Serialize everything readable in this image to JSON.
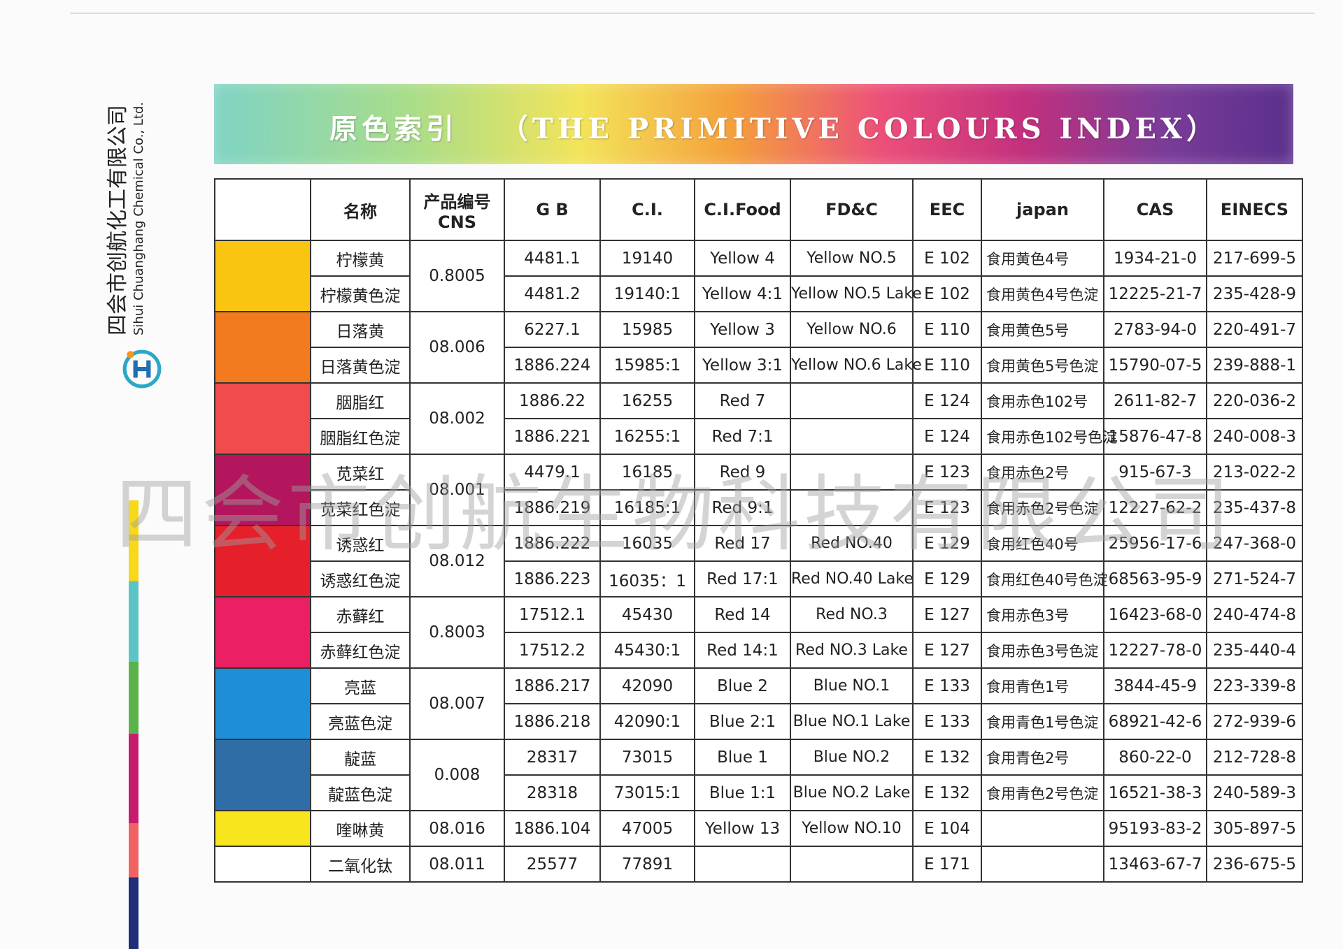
{
  "company": {
    "name_cn": "四会市创航化工有限公司",
    "name_en": "Sihui Chuanghang Chemical Co., Ltd."
  },
  "title": {
    "cn": "原色索引",
    "en": "（THE PRIMITIVE COLOURS INDEX）"
  },
  "watermark": "四会市创航生物科技有限公司",
  "table": {
    "headers": [
      "名称",
      [
        "产品编号",
        "CNS"
      ],
      "G B",
      "C.I.",
      "C.I.Food",
      "FD&C",
      "EEC",
      "japan",
      "CAS",
      "EINECS"
    ],
    "groups": [
      {
        "color": "#f9c510",
        "cns": "0.8005",
        "rows": [
          {
            "name": "柠檬黄",
            "gb": "4481.1",
            "ci": "19140",
            "ci_food": "Yellow 4",
            "fdc": "Yellow NO.5",
            "eec": "E 102",
            "japan": "食用黄色4号",
            "cas": "1934-21-0",
            "einecs": "217-699-5"
          },
          {
            "name": "柠檬黄色淀",
            "gb": "4481.2",
            "ci": "19140:1",
            "ci_food": "Yellow 4:1",
            "fdc": "Yellow NO.5 Lake",
            "eec": "E 102",
            "japan": "食用黄色4号色淀",
            "cas": "12225-21-7",
            "einecs": "235-428-9"
          }
        ]
      },
      {
        "color": "#f47a1f",
        "cns": "08.006",
        "rows": [
          {
            "name": "日落黄",
            "gb": "6227.1",
            "ci": "15985",
            "ci_food": "Yellow 3",
            "fdc": "Yellow NO.6",
            "eec": "E 110",
            "japan": "食用黄色5号",
            "cas": "2783-94-0",
            "einecs": "220-491-7"
          },
          {
            "name": "日落黄色淀",
            "gb": "1886.224",
            "ci": "15985:1",
            "ci_food": "Yellow 3:1",
            "fdc": "Yellow NO.6 Lake",
            "eec": "E 110",
            "japan": "食用黄色5号色淀",
            "cas": "15790-07-5",
            "einecs": "239-888-1"
          }
        ]
      },
      {
        "color": "#f04b4d",
        "cns": "08.002",
        "rows": [
          {
            "name": "胭脂红",
            "gb": "1886.22",
            "ci": "16255",
            "ci_food": "Red 7",
            "eec": "E 124",
            "japan": "食用赤色102号",
            "cas": "2611-82-7",
            "einecs": "220-036-2"
          },
          {
            "name": "胭脂红色淀",
            "gb": "1886.221",
            "ci": "16255:1",
            "ci_food": "Red 7:1",
            "eec": "E 124",
            "japan": "食用赤色102号色淀",
            "cas": "15876-47-8",
            "einecs": "240-008-3"
          }
        ]
      },
      {
        "color": "#b3165c",
        "cns": "08.001",
        "rows": [
          {
            "name": "苋菜红",
            "gb": "4479.1",
            "ci": "16185",
            "ci_food": "Red 9",
            "eec": "E 123",
            "japan": "食用赤色2号",
            "cas": "915-67-3",
            "einecs": "213-022-2"
          },
          {
            "name": "苋菜红色淀",
            "gb": "1886.219",
            "ci": "16185:1",
            "ci_food": "Red 9:1",
            "eec": "E 123",
            "japan": "食用赤色2号色淀",
            "cas": "12227-62-2",
            "einecs": "235-437-8"
          }
        ]
      },
      {
        "color": "#e6202b",
        "cns": "08.012",
        "rows": [
          {
            "name": "诱惑红",
            "gb": "1886.222",
            "ci": "16035",
            "ci_food": "Red 17",
            "fdc": "Red  NO.40",
            "eec": "E 129",
            "japan": "食用红色40号",
            "cas": "25956-17-6",
            "einecs": "247-368-0"
          },
          {
            "name": "诱惑红色淀",
            "gb": "1886.223",
            "ci": "16035：1",
            "ci_food": "Red 17:1",
            "fdc": "Red NO.40 Lake",
            "eec": "E 129",
            "japan": "食用红色40号色淀",
            "cas": "68563-95-9",
            "einecs": "271-524-7"
          }
        ]
      },
      {
        "color": "#eb2064",
        "cns": "0.8003",
        "rows": [
          {
            "name": "赤藓红",
            "gb": "17512.1",
            "ci": "45430",
            "ci_food": "Red 14",
            "fdc": "Red NO.3",
            "eec": "E 127",
            "japan": "食用赤色3号",
            "cas": "16423-68-0",
            "einecs": "240-474-8"
          },
          {
            "name": "赤藓红色淀",
            "gb": "17512.2",
            "ci": "45430:1",
            "ci_food": "Red 14:1",
            "fdc": "Red NO.3 Lake",
            "eec": "E 127",
            "japan": "食用赤色3号色淀",
            "cas": "12227-78-0",
            "einecs": "235-440-4"
          }
        ]
      },
      {
        "color": "#1f8ed8",
        "cns": "08.007",
        "rows": [
          {
            "name": "亮蓝",
            "gb": "1886.217",
            "ci": "42090",
            "ci_food": "Blue 2",
            "fdc": "Blue NO.1",
            "eec": "E 133",
            "japan": "食用青色1号",
            "cas": "3844-45-9",
            "einecs": "223-339-8"
          },
          {
            "name": "亮蓝色淀",
            "gb": "1886.218",
            "ci": "42090:1",
            "ci_food": "Blue 2:1",
            "fdc": "Blue NO.1 Lake",
            "eec": "E 133",
            "japan": "食用青色1号色淀",
            "cas": "68921-42-6",
            "einecs": "272-939-6"
          }
        ]
      },
      {
        "color": "#2f6da6",
        "cns": "0.008",
        "rows": [
          {
            "name": "靛蓝",
            "gb": "28317",
            "ci": "73015",
            "ci_food": "Blue 1",
            "fdc": "Blue NO.2",
            "eec": "E 132",
            "japan": "食用青色2号",
            "cas": "860-22-0",
            "einecs": "212-728-8"
          },
          {
            "name": "靛蓝色淀",
            "gb": "28318",
            "ci": "73015:1",
            "ci_food": "Blue 1:1",
            "fdc": "Blue NO.2 Lake",
            "eec": "E 132",
            "japan": "食用青色2号色淀",
            "cas": "16521-38-3",
            "einecs": "240-589-3"
          }
        ]
      },
      {
        "color": "#f8e51e",
        "cns": "08.016",
        "rows": [
          {
            "name": "喹啉黄",
            "gb": "1886.104",
            "ci": "47005",
            "ci_food": "Yellow 13",
            "fdc": "Yellow NO.10",
            "eec": "E 104",
            "cas": "95193-83-2",
            "einecs": "305-897-5"
          }
        ]
      },
      {
        "color": "#ffffff",
        "cns": "08.011",
        "rows": [
          {
            "name": "二氧化钛",
            "gb": "25577",
            "ci": "77891",
            "eec": "E 171",
            "cas": "13463-67-7",
            "einecs": "236-675-5"
          }
        ]
      }
    ]
  }
}
